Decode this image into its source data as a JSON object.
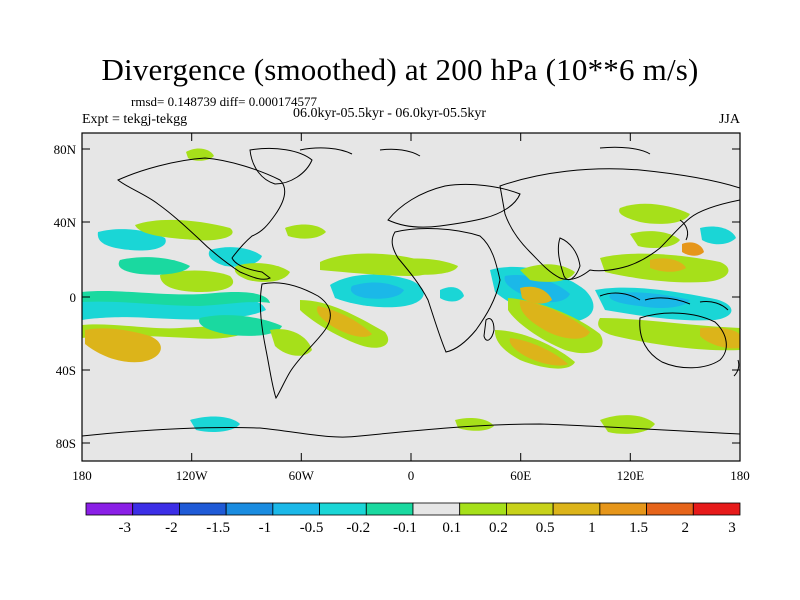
{
  "title": "Divergence (smoothed) at 200 hPa (10**6 m/s)",
  "stats_line": "rmsd= 0.148739  diff= 0.000174577",
  "experiment_label": "Expt = tekgj-tekgg",
  "periods_label": "06.0kyr-05.5kyr - 06.0kyr-05.5kyr",
  "season_label": "JJA",
  "map": {
    "projection": "cylindrical equidistant",
    "lon_range": [
      -180,
      180
    ],
    "lat_range": [
      -90,
      90
    ],
    "lon_ticks": [
      "180",
      "120W",
      "60W",
      "0",
      "60E",
      "120E",
      "180"
    ],
    "lat_ticks": [
      "80N",
      "40N",
      "0",
      "40S",
      "80S"
    ],
    "background_color": "#e6e6e6"
  },
  "colorbar": {
    "labels": [
      "-3",
      "-2",
      "-1.5",
      "-1",
      "-0.5",
      "-0.2",
      "-0.1",
      "0.1",
      "0.2",
      "0.5",
      "1",
      "1.5",
      "2",
      "3"
    ],
    "colors": [
      "#8a1fe6",
      "#3c2ee6",
      "#1f5ad6",
      "#1a8ce0",
      "#1bb8e8",
      "#1ad6d6",
      "#1ad9a0",
      "#e6e6e6",
      "#a6e01a",
      "#c8d21a",
      "#dcb41a",
      "#e6961a",
      "#e6641a",
      "#e61a1a"
    ]
  }
}
